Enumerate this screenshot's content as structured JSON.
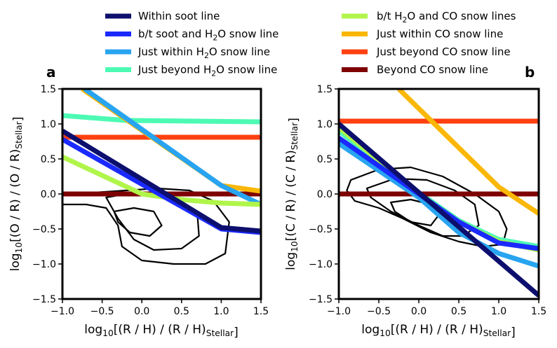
{
  "legend": [
    {
      "label": "Within soot line",
      "color": "#0d0f6e"
    },
    {
      "label": "b/t soot and H₂O snow line",
      "color": "#1a2aff"
    },
    {
      "label": "Just within H₂O snow line",
      "color": "#28a4f0"
    },
    {
      "label": "Just beyond H₂O snow line",
      "color": "#4dfab4"
    },
    {
      "label": "b/t H₂O and CO snow lines",
      "color": "#b0f54a"
    },
    {
      "label": "Just within CO snow line",
      "color": "#fab705"
    },
    {
      "label": "Just beyond CO snow line",
      "color": "#ff4010"
    },
    {
      "label": "Beyond CO snow line",
      "color": "#7e0000"
    }
  ],
  "chart_data": [
    {
      "type": "line",
      "panel": "a",
      "xlabel": "log₁₀[(R / H) / (R / H)Stellar]",
      "ylabel": "log₁₀[(O / R) / (O / R)Stellar]",
      "xlim": [
        -1.0,
        1.5
      ],
      "ylim": [
        -1.5,
        1.5
      ],
      "xticks": [
        "−1.0",
        "−0.5",
        "0.0",
        "0.5",
        "1.0",
        "1.5"
      ],
      "yticks": [
        "−1.5",
        "−1.0",
        "−0.5",
        "0.0",
        "0.5",
        "1.0",
        "1.5"
      ],
      "series": [
        {
          "name": "Within soot line",
          "x": [
            -1.0,
            1.0,
            1.5
          ],
          "y": [
            0.9,
            -0.48,
            -0.53
          ]
        },
        {
          "name": "b/t soot and H₂O snow line",
          "x": [
            -1.0,
            1.0,
            1.5
          ],
          "y": [
            0.78,
            -0.5,
            -0.55
          ]
        },
        {
          "name": "Just within H₂O snow line",
          "x": [
            -0.72,
            1.0,
            1.5
          ],
          "y": [
            1.5,
            0.12,
            -0.15
          ]
        },
        {
          "name": "Just beyond H₂O snow line",
          "x": [
            -1.0,
            -0.2,
            1.5
          ],
          "y": [
            1.12,
            1.05,
            1.03
          ]
        },
        {
          "name": "b/t H₂O and CO snow lines",
          "x": [
            -1.0,
            0.0,
            0.5,
            1.0,
            1.5
          ],
          "y": [
            0.53,
            0.0,
            -0.08,
            -0.13,
            -0.15
          ]
        },
        {
          "name": "Just within CO snow line",
          "x": [
            -0.75,
            1.0,
            1.5
          ],
          "y": [
            1.5,
            0.12,
            0.04
          ]
        },
        {
          "name": "Just beyond CO snow line",
          "x": [
            -1.0,
            1.5
          ],
          "y": [
            0.81,
            0.81
          ]
        },
        {
          "name": "Beyond CO snow line",
          "x": [
            -1.0,
            1.5
          ],
          "y": [
            0.0,
            0.0
          ]
        }
      ],
      "contours": [
        {
          "x": [
            -1.0,
            -0.6,
            -0.2,
            0.2,
            0.6,
            0.9,
            1.1,
            1.05,
            0.8,
            0.4,
            0.0,
            -0.25,
            -0.3,
            -0.45,
            -0.7,
            -1.0
          ],
          "y": [
            0.0,
            0.02,
            0.05,
            0.08,
            0.05,
            -0.1,
            -0.4,
            -0.85,
            -1.0,
            -1.0,
            -0.95,
            -0.75,
            -0.45,
            -0.2,
            -0.15,
            -0.15
          ]
        },
        {
          "x": [
            -0.45,
            -0.2,
            0.1,
            0.45,
            0.7,
            0.72,
            0.5,
            0.15,
            -0.1,
            -0.3,
            -0.45
          ],
          "y": [
            -0.05,
            0.0,
            -0.02,
            -0.1,
            -0.3,
            -0.6,
            -0.78,
            -0.8,
            -0.65,
            -0.35,
            -0.05
          ]
        },
        {
          "x": [
            -0.35,
            -0.1,
            0.15,
            0.25,
            0.1,
            -0.15,
            -0.3,
            -0.35
          ],
          "y": [
            -0.25,
            -0.2,
            -0.25,
            -0.45,
            -0.6,
            -0.55,
            -0.4,
            -0.25
          ]
        }
      ]
    },
    {
      "type": "line",
      "panel": "b",
      "xlabel": "log₁₀[(R / H) / (R / H)Stellar]",
      "ylabel": "log₁₀[(C / R) / (C / R)Stellar]",
      "xlim": [
        -1.0,
        1.5
      ],
      "ylim": [
        -1.5,
        1.5
      ],
      "xticks": [
        "−1.0",
        "−0.5",
        "0.0",
        "0.5",
        "1.0",
        "1.5"
      ],
      "yticks": [
        "−1.5",
        "−1.0",
        "−0.5",
        "0.0",
        "0.5",
        "1.0",
        "1.5"
      ],
      "series": [
        {
          "name": "Within soot line",
          "x": [
            -1.0,
            1.5
          ],
          "y": [
            1.0,
            -1.45
          ]
        },
        {
          "name": "b/t soot and H₂O snow line",
          "x": [
            -1.0,
            0.0,
            0.5,
            1.0,
            1.5
          ],
          "y": [
            0.8,
            0.0,
            -0.4,
            -0.7,
            -0.78
          ]
        },
        {
          "name": "Just within H₂O snow line",
          "x": [
            -1.0,
            0.0,
            0.5,
            1.0,
            1.5
          ],
          "y": [
            0.72,
            -0.05,
            -0.55,
            -0.85,
            -1.03
          ]
        },
        {
          "name": "Just beyond H₂O snow line",
          "x": [
            -1.0,
            0.0,
            0.5,
            1.0,
            1.5
          ],
          "y": [
            0.9,
            0.02,
            -0.38,
            -0.65,
            -0.75
          ]
        },
        {
          "name": "b/t H₂O and CO snow lines",
          "x": [
            -1.0,
            0.0,
            0.5,
            1.0,
            1.5
          ],
          "y": [
            0.95,
            0.0,
            -0.4,
            -0.68,
            -0.8
          ]
        },
        {
          "name": "Just within CO snow line",
          "x": [
            -0.25,
            1.0,
            1.5
          ],
          "y": [
            1.5,
            0.1,
            -0.28
          ]
        },
        {
          "name": "Just beyond CO snow line",
          "x": [
            -1.0,
            1.5
          ],
          "y": [
            1.04,
            1.04
          ]
        },
        {
          "name": "Beyond CO snow line",
          "x": [
            -1.0,
            1.5
          ],
          "y": [
            0.0,
            0.0
          ]
        }
      ],
      "contours": [
        {
          "x": [
            -0.85,
            -0.5,
            -0.1,
            0.3,
            0.7,
            1.0,
            1.1,
            1.05,
            0.8,
            0.5,
            0.15,
            -0.2,
            -0.5,
            -0.8,
            -0.9,
            -0.85
          ],
          "y": [
            0.2,
            0.35,
            0.38,
            0.25,
            0.0,
            -0.25,
            -0.5,
            -0.72,
            -0.75,
            -0.68,
            -0.55,
            -0.35,
            -0.2,
            -0.1,
            0.05,
            0.2
          ]
        },
        {
          "x": [
            -0.65,
            -0.3,
            0.1,
            0.45,
            0.7,
            0.75,
            0.55,
            0.3,
            0.0,
            -0.35,
            -0.6,
            -0.65
          ],
          "y": [
            0.08,
            0.22,
            0.2,
            0.05,
            -0.15,
            -0.45,
            -0.6,
            -0.6,
            -0.45,
            -0.25,
            -0.05,
            0.08
          ]
        },
        {
          "x": [
            -0.35,
            -0.1,
            0.15,
            0.25,
            0.15,
            -0.1,
            -0.3,
            -0.35
          ],
          "y": [
            -0.12,
            -0.08,
            -0.15,
            -0.3,
            -0.45,
            -0.4,
            -0.25,
            -0.12
          ]
        }
      ]
    }
  ]
}
